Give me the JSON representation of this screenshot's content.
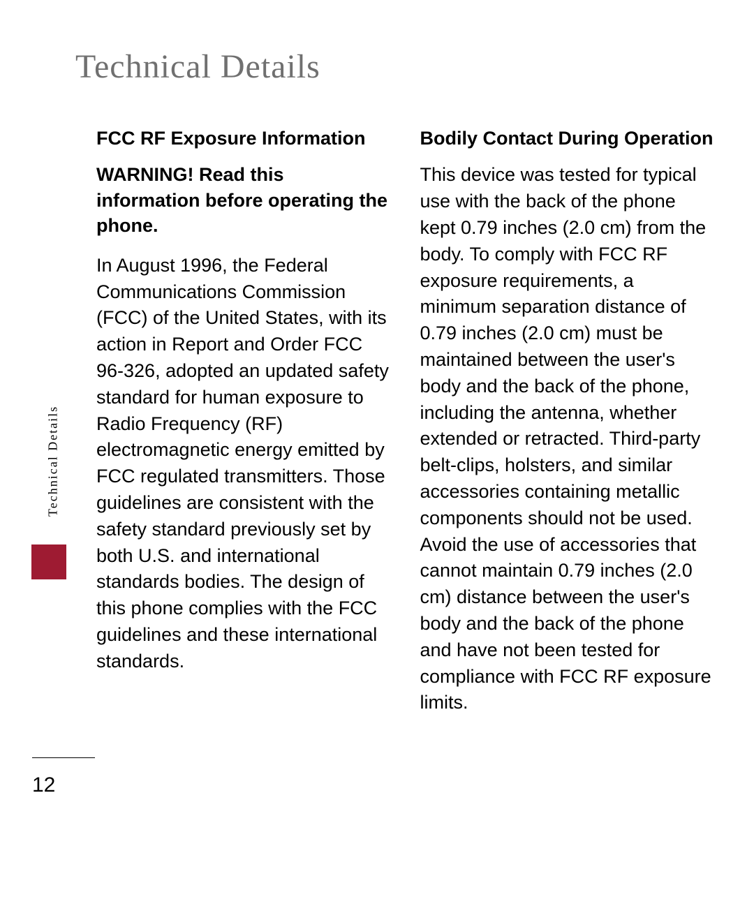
{
  "page": {
    "title": "Technical Details",
    "sideTabLabel": "Technical Details",
    "pageNumber": "12"
  },
  "leftColumn": {
    "heading": "FCC RF Exposure Information",
    "subHeading": "WARNING! Read this information before operating the phone.",
    "body": "In August 1996, the Federal Communications Commission (FCC) of the United States, with its action in Report and Order FCC 96-326, adopted an updated safety standard for human exposure to Radio Frequency (RF) electromagnetic energy emitted by FCC regulated transmitters. Those guidelines are consistent with the safety standard previously set by both U.S. and international standards bodies. The design of this phone complies with the FCC guidelines and these international standards."
  },
  "rightColumn": {
    "heading": "Bodily Contact During Operation",
    "body": "This device was tested for typical use with the back of the phone kept 0.79 inches (2.0 cm) from the body. To comply with FCC RF exposure requirements, a minimum separation distance of 0.79 inches (2.0 cm) must be maintained between the user's body and the back of the phone, including the antenna, whether extended or retracted. Third-party belt-clips, holsters, and similar accessories containing metallic components should not be used. Avoid the use of accessories that cannot maintain 0.79 inches (2.0 cm) distance between the user's body and the back of the phone and have not been tested for compliance with FCC RF exposure limits."
  },
  "colors": {
    "titleColor": "#707070",
    "textColor": "#000000",
    "accentColor": "#9e1b32",
    "backgroundColor": "#ffffff"
  }
}
